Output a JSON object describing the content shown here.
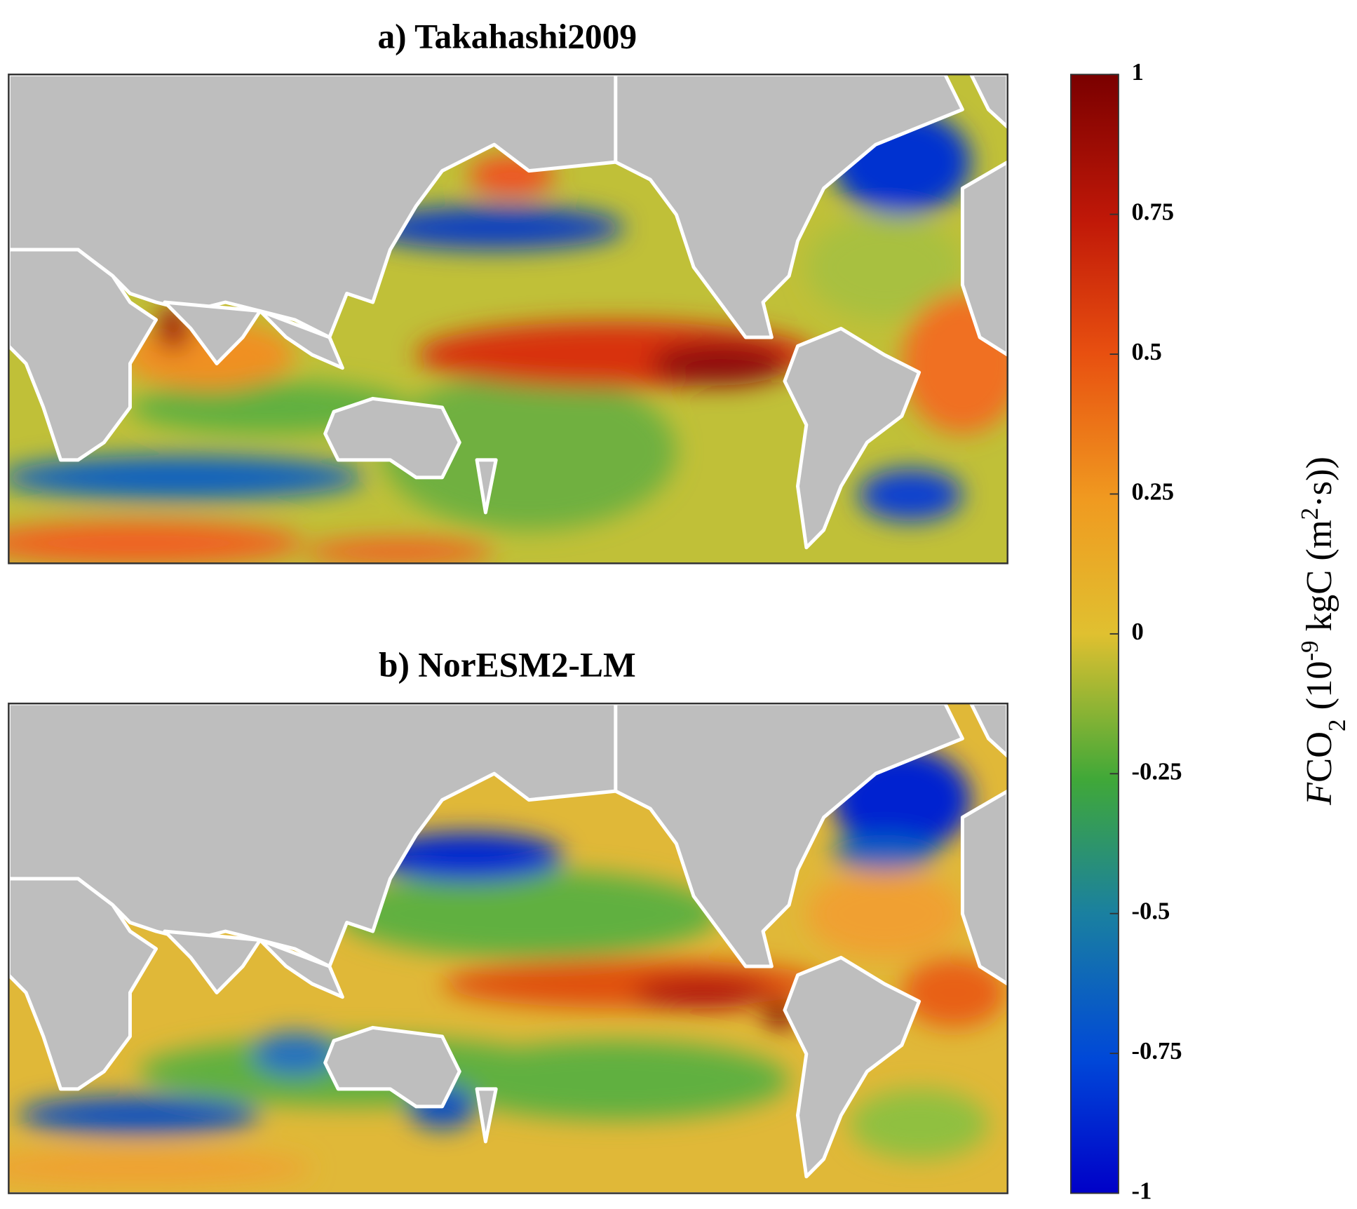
{
  "panels": [
    {
      "title": "a) Takahashi2009"
    },
    {
      "title": "b) NorESM2-LM"
    }
  ],
  "colorbar": {
    "lim": [
      -1,
      1
    ],
    "ticks": [
      1,
      0.75,
      0.5,
      0.25,
      0,
      -0.25,
      -0.5,
      -0.75,
      -1
    ],
    "label": [
      "F",
      "CO",
      "2",
      " (10",
      "-9",
      " kgC (m",
      "2",
      "·s))"
    ]
  }
}
